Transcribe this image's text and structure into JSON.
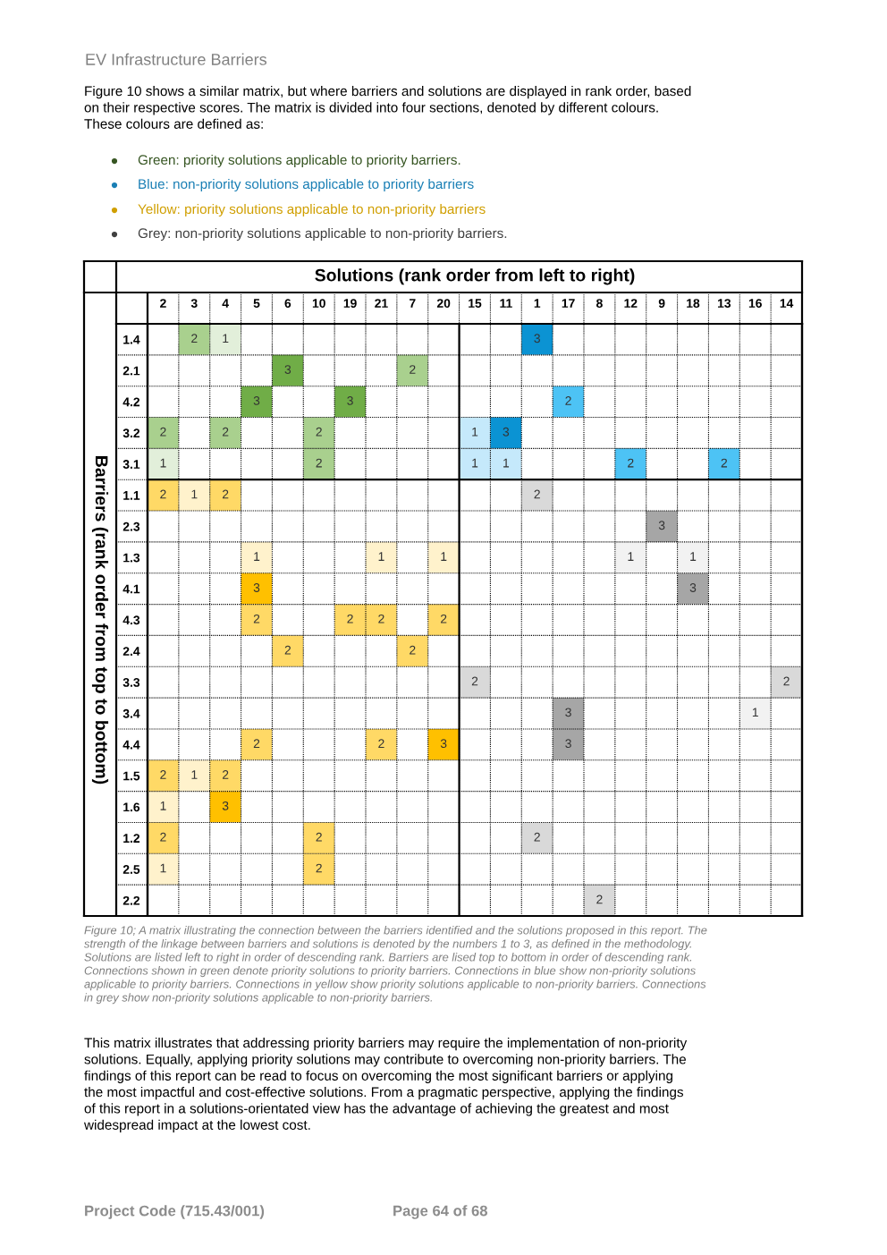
{
  "chart_data": {
    "type": "heatmap",
    "title": "EV Infrastructure Barriers",
    "subtitle": "Figure 10 shows a similar matrix, but where barriers and solutions are displayed in rank order, based\non their respective scores. The matrix is divided into four sections, denoted by different colours.\nThese colours are defined as:",
    "annotations": [
      "Green: priority solutions applicable to priority barriers.",
      "Blue: non-priority solutions applicable to priority barriers",
      "Yellow: priority solutions applicable to non-priority barriers",
      "Grey: non-priority solutions applicable to non-priority barriers.",
      "Figure 10; A matrix illustrating the connection between the barriers identified and the solutions proposed in this report. The\nstrength of the linkage between barriers and solutions is denoted by the numbers 1 to 3, as defined in the methodology.\nSolutions are listed left to right in order of descending rank. Barriers are lised top to bottom in order of descending rank.\nConnections shown in green denote priority solutions to priority barriers. Connections in blue show non-priority solutions\napplicable to priority barriers. Connections in yellow show priority solutions applicable to non-priority barriers. Connections\nin grey show non-priority solutions applicable to non-priority barriers.",
      "This matrix illustrates that addressing priority barriers may require the implementation of non-priority\nsolutions. Equally, applying priority solutions may contribute to overcoming non-priority barriers. The\nfindings of this report can be read to focus on overcoming the most significant barriers or applying\nthe most impactful and cost-effective solutions. From a pragmatic perspective, applying the findings\nof this report in a solutions-orientated view has the advantage of achieving the greatest and most\nwidespread impact at the lowest cost.",
      "Project Code (715.43/001)",
      "Page 64 of 68"
    ],
    "xlabel": "Solutions (rank order from left to right)",
    "ylabel": "Barriers (rank order from top to bottom)",
    "categories": [
      "2",
      "3",
      "4",
      "5",
      "6",
      "10",
      "19",
      "21",
      "7",
      "20",
      "15",
      "11",
      "1",
      "17",
      "8",
      "12",
      "9",
      "18",
      "13",
      "16",
      "14"
    ],
    "y_categories": [
      "1.4",
      "2.1",
      "4.2",
      "3.2",
      "3.1",
      "1.1",
      "2.3",
      "1.3",
      "4.1",
      "4.3",
      "2.4",
      "3.3",
      "3.4",
      "4.4",
      "1.5",
      "1.6",
      "1.2",
      "2.5",
      "2.2"
    ],
    "cells": [
      [
        null,
        2,
        1,
        null,
        null,
        null,
        null,
        null,
        null,
        null,
        null,
        null,
        3,
        null,
        null,
        null,
        null,
        null,
        null,
        null,
        null
      ],
      [
        null,
        null,
        null,
        null,
        3,
        null,
        null,
        null,
        2,
        null,
        null,
        null,
        null,
        null,
        null,
        null,
        null,
        null,
        null,
        null,
        null
      ],
      [
        null,
        null,
        null,
        3,
        null,
        null,
        3,
        null,
        null,
        null,
        null,
        null,
        null,
        2,
        null,
        null,
        null,
        null,
        null,
        null,
        null
      ],
      [
        2,
        null,
        2,
        null,
        null,
        2,
        null,
        null,
        null,
        null,
        1,
        3,
        null,
        null,
        null,
        null,
        null,
        null,
        null,
        null,
        null
      ],
      [
        1,
        null,
        null,
        null,
        null,
        2,
        null,
        null,
        null,
        null,
        1,
        1,
        null,
        null,
        null,
        2,
        null,
        null,
        2,
        null,
        null
      ],
      [
        2,
        1,
        2,
        null,
        null,
        null,
        null,
        null,
        null,
        null,
        null,
        null,
        2,
        null,
        null,
        null,
        null,
        null,
        null,
        null,
        null
      ],
      [
        null,
        null,
        null,
        null,
        null,
        null,
        null,
        null,
        null,
        null,
        null,
        null,
        null,
        null,
        null,
        null,
        3,
        null,
        null,
        null,
        null
      ],
      [
        null,
        null,
        null,
        1,
        null,
        null,
        null,
        1,
        null,
        1,
        null,
        null,
        null,
        null,
        null,
        1,
        null,
        1,
        null,
        null,
        null
      ],
      [
        null,
        null,
        null,
        3,
        null,
        null,
        null,
        null,
        null,
        null,
        null,
        null,
        null,
        null,
        null,
        null,
        null,
        3,
        null,
        null,
        null
      ],
      [
        null,
        null,
        null,
        2,
        null,
        null,
        2,
        2,
        null,
        2,
        null,
        null,
        null,
        null,
        null,
        null,
        null,
        null,
        null,
        null,
        null
      ],
      [
        null,
        null,
        null,
        null,
        2,
        null,
        null,
        null,
        2,
        null,
        null,
        null,
        null,
        null,
        null,
        null,
        null,
        null,
        null,
        null,
        null
      ],
      [
        null,
        null,
        null,
        null,
        null,
        null,
        null,
        null,
        null,
        null,
        2,
        null,
        null,
        null,
        null,
        null,
        null,
        null,
        null,
        null,
        2
      ],
      [
        null,
        null,
        null,
        null,
        null,
        null,
        null,
        null,
        null,
        null,
        null,
        null,
        null,
        3,
        null,
        null,
        null,
        null,
        null,
        1,
        null
      ],
      [
        null,
        null,
        null,
        2,
        null,
        null,
        null,
        2,
        null,
        3,
        null,
        null,
        null,
        3,
        null,
        null,
        null,
        null,
        null,
        null,
        null
      ],
      [
        2,
        1,
        2,
        null,
        null,
        null,
        null,
        null,
        null,
        null,
        null,
        null,
        null,
        null,
        null,
        null,
        null,
        null,
        null,
        null,
        null
      ],
      [
        1,
        null,
        3,
        null,
        null,
        null,
        null,
        null,
        null,
        null,
        null,
        null,
        null,
        null,
        null,
        null,
        null,
        null,
        null,
        null,
        null
      ],
      [
        2,
        null,
        null,
        null,
        null,
        2,
        null,
        null,
        null,
        null,
        null,
        null,
        2,
        null,
        null,
        null,
        null,
        null,
        null,
        null,
        null
      ],
      [
        1,
        null,
        null,
        null,
        null,
        2,
        null,
        null,
        null,
        null,
        null,
        null,
        null,
        null,
        null,
        null,
        null,
        null,
        null,
        null,
        null
      ],
      [
        null,
        null,
        null,
        null,
        null,
        null,
        null,
        null,
        null,
        null,
        null,
        null,
        null,
        null,
        2,
        null,
        null,
        null,
        null,
        null,
        null
      ]
    ],
    "colors": [
      [
        null,
        "#a9d08e",
        "#e2efda",
        null,
        null,
        null,
        null,
        null,
        null,
        null,
        null,
        null,
        "#0b93d3",
        null,
        null,
        null,
        null,
        null,
        null,
        null,
        null
      ],
      [
        null,
        null,
        null,
        null,
        "#70ad47",
        null,
        null,
        null,
        "#a9d08e",
        null,
        null,
        null,
        null,
        null,
        null,
        null,
        null,
        null,
        null,
        null,
        null
      ],
      [
        null,
        null,
        null,
        "#70ad47",
        null,
        null,
        "#70ad47",
        null,
        null,
        null,
        null,
        null,
        null,
        "#4dc3f5",
        null,
        null,
        null,
        null,
        null,
        null,
        null
      ],
      [
        "#a9d08e",
        null,
        "#a9d08e",
        null,
        null,
        "#a9d08e",
        null,
        null,
        null,
        null,
        "#c5e9fb",
        "#0b93d3",
        null,
        null,
        null,
        null,
        null,
        null,
        null,
        null,
        null
      ],
      [
        "#e2efda",
        null,
        null,
        null,
        null,
        "#a9d08e",
        null,
        null,
        null,
        null,
        "#c5e9fb",
        "#c5e9fb",
        null,
        null,
        null,
        "#4dc3f5",
        null,
        null,
        "#4dc3f5",
        null,
        null
      ],
      [
        "#ffd966",
        "#fff2cc",
        "#ffd966",
        null,
        null,
        null,
        null,
        null,
        null,
        null,
        null,
        null,
        "#d9d9d9",
        null,
        null,
        null,
        null,
        null,
        null,
        null,
        null
      ],
      [
        null,
        null,
        null,
        null,
        null,
        null,
        null,
        null,
        null,
        null,
        null,
        null,
        null,
        null,
        null,
        null,
        "#a6a6a6",
        null,
        null,
        null,
        null
      ],
      [
        null,
        null,
        null,
        "#fff2cc",
        null,
        null,
        null,
        "#fff2cc",
        null,
        "#fff2cc",
        null,
        null,
        null,
        null,
        null,
        "#f2f2f2",
        null,
        "#f2f2f2",
        null,
        null,
        null
      ],
      [
        null,
        null,
        null,
        "#ffc000",
        null,
        null,
        null,
        null,
        null,
        null,
        null,
        null,
        null,
        null,
        null,
        null,
        null,
        "#a6a6a6",
        null,
        null,
        null
      ],
      [
        null,
        null,
        null,
        "#ffd966",
        null,
        null,
        "#ffd966",
        "#ffd966",
        null,
        "#ffd966",
        null,
        null,
        null,
        null,
        null,
        null,
        null,
        null,
        null,
        null,
        null
      ],
      [
        null,
        null,
        null,
        null,
        "#ffd966",
        null,
        null,
        null,
        "#ffd966",
        null,
        null,
        null,
        null,
        null,
        null,
        null,
        null,
        null,
        null,
        null,
        null
      ],
      [
        null,
        null,
        null,
        null,
        null,
        null,
        null,
        null,
        null,
        null,
        "#d9d9d9",
        null,
        null,
        null,
        null,
        null,
        null,
        null,
        null,
        null,
        "#d9d9d9"
      ],
      [
        null,
        null,
        null,
        null,
        null,
        null,
        null,
        null,
        null,
        null,
        null,
        null,
        null,
        "#a6a6a6",
        null,
        null,
        null,
        null,
        null,
        "#f2f2f2",
        null
      ],
      [
        null,
        null,
        null,
        "#ffd966",
        null,
        null,
        null,
        "#ffd966",
        null,
        "#ffc000",
        null,
        null,
        null,
        "#a6a6a6",
        null,
        null,
        null,
        null,
        null,
        null,
        null
      ],
      [
        "#ffd966",
        "#fff2cc",
        "#ffd966",
        null,
        null,
        null,
        null,
        null,
        null,
        null,
        null,
        null,
        null,
        null,
        null,
        null,
        null,
        null,
        null,
        null,
        null
      ],
      [
        "#fff2cc",
        null,
        "#ffc000",
        null,
        null,
        null,
        null,
        null,
        null,
        null,
        null,
        null,
        null,
        null,
        null,
        null,
        null,
        null,
        null,
        null,
        null
      ],
      [
        "#ffd966",
        null,
        null,
        null,
        null,
        "#ffd966",
        null,
        null,
        null,
        null,
        null,
        null,
        "#d9d9d9",
        null,
        null,
        null,
        null,
        null,
        null,
        null,
        null
      ],
      [
        "#fff2cc",
        null,
        null,
        null,
        null,
        "#ffd966",
        null,
        null,
        null,
        null,
        null,
        null,
        null,
        null,
        null,
        null,
        null,
        null,
        null,
        null,
        null
      ],
      [
        null,
        null,
        null,
        null,
        null,
        null,
        null,
        null,
        null,
        null,
        null,
        null,
        null,
        null,
        "#d9d9d9",
        null,
        null,
        null,
        null,
        null,
        null
      ]
    ],
    "data_labels": true,
    "grid": true
  }
}
